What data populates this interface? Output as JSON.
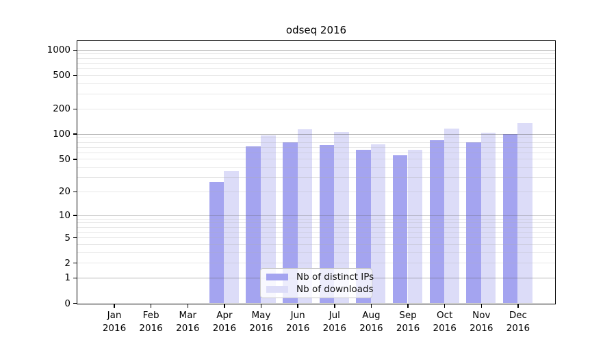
{
  "chart_data": {
    "type": "bar",
    "title": "odseq 2016",
    "categories": [
      "Jan",
      "Feb",
      "Mar",
      "Apr",
      "May",
      "Jun",
      "Jul",
      "Aug",
      "Sep",
      "Oct",
      "Nov",
      "Dec"
    ],
    "category_year": "2016",
    "series": [
      {
        "name": "Nb of distinct IPs",
        "color": "#a4a4f0",
        "values": [
          0,
          0,
          0,
          26,
          71,
          80,
          74,
          64,
          55,
          84,
          80,
          100
        ]
      },
      {
        "name": "Nb of downloads",
        "color": "#dcdcf8",
        "values": [
          0,
          0,
          0,
          36,
          96,
          113,
          106,
          75,
          64,
          116,
          104,
          135
        ]
      }
    ],
    "xlabel": "",
    "ylabel": "",
    "yscale": "log10(value+1)",
    "ylim": [
      0,
      1275
    ],
    "yticks": [
      1000,
      500,
      200,
      100,
      50,
      20,
      10,
      5,
      2,
      1,
      0
    ],
    "gridlines": {
      "decade": [
        1,
        10,
        100,
        1000
      ],
      "minor": [
        2,
        3,
        4,
        5,
        6,
        7,
        8,
        9,
        20,
        30,
        40,
        50,
        60,
        70,
        80,
        90,
        200,
        300,
        400,
        500,
        600,
        700,
        800,
        900
      ]
    },
    "grid": true,
    "legend_position": "lower-center"
  },
  "colors": {
    "background": "#ffffff",
    "axis": "#000000",
    "decade_gridline": "#b0b0b0",
    "minor_gridline": "#e8e8e8",
    "legend_border": "#c9c9c9",
    "text": "#000000"
  }
}
